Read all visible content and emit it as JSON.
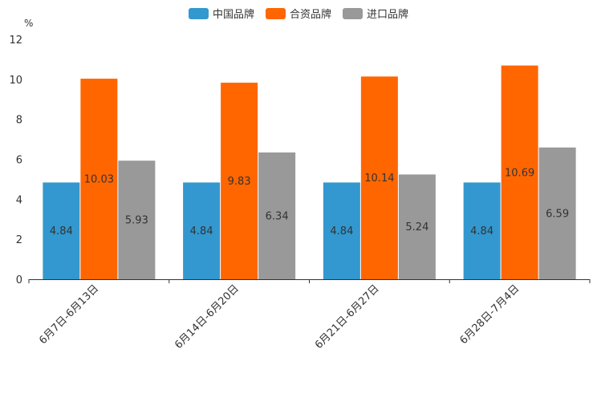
{
  "legend": {
    "items": [
      {
        "label": "中国品牌",
        "color": "#3398cf"
      },
      {
        "label": "合资品牌",
        "color": "#ff6600"
      },
      {
        "label": "进口品牌",
        "color": "#999999"
      }
    ]
  },
  "chart_data": {
    "type": "bar",
    "ylabel": "%",
    "ylim": [
      0,
      12
    ],
    "yticks": [
      "0",
      "2",
      "4",
      "6",
      "8",
      "10",
      "12"
    ],
    "categories": [
      "6月7日-6月13日",
      "6月14日-6月20日",
      "6月21日-6月27日",
      "6月28日-7月4日"
    ],
    "series": [
      {
        "name": "中国品牌",
        "color": "#3398cf",
        "values": [
          4.84,
          4.84,
          4.84,
          4.84
        ],
        "labels": [
          "4.84",
          "4.84",
          "4.84",
          "4.84"
        ]
      },
      {
        "name": "合资品牌",
        "color": "#ff6600",
        "values": [
          10.03,
          9.83,
          10.14,
          10.69
        ],
        "labels": [
          "10.03",
          "9.83",
          "10.14",
          "10.69"
        ]
      },
      {
        "name": "进口品牌",
        "color": "#999999",
        "values": [
          5.93,
          6.34,
          5.24,
          6.59
        ],
        "labels": [
          "5.93",
          "6.34",
          "5.24",
          "6.59"
        ]
      }
    ]
  }
}
